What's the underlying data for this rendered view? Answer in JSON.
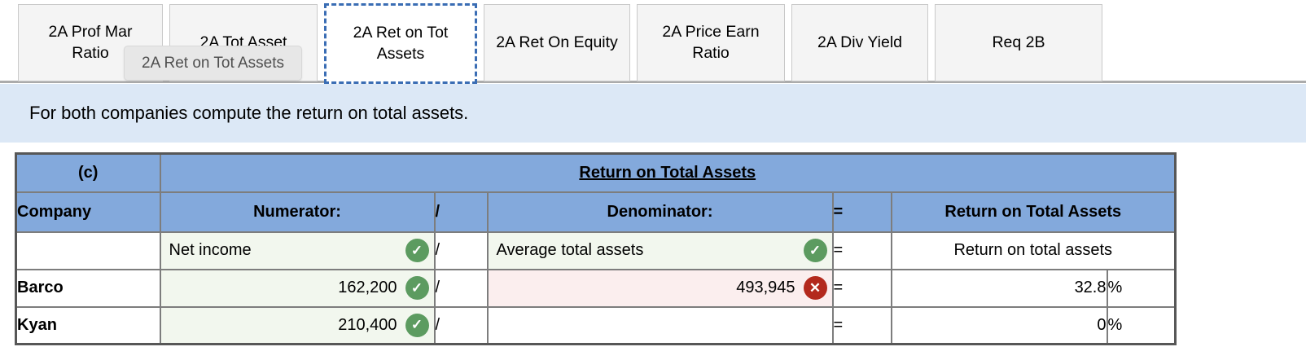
{
  "tabs": [
    {
      "label": "2A Prof Mar Ratio",
      "active": false
    },
    {
      "label": "2A Tot Asset",
      "active": false
    },
    {
      "label": "2A Ret on Tot Assets",
      "active": true
    },
    {
      "label": "2A Ret On Equity",
      "active": false
    },
    {
      "label": "2A Price Earn Ratio",
      "active": false
    },
    {
      "label": "2A Div Yield",
      "active": false
    },
    {
      "label": "Req 2B",
      "active": false
    }
  ],
  "tooltip": {
    "text": "2A Ret on Tot Assets"
  },
  "banner": {
    "text": "For both companies compute the return on total assets."
  },
  "icons": {
    "correct": "✓",
    "incorrect": "✕"
  },
  "symbols": {
    "slash": "/",
    "equals": "="
  },
  "table": {
    "corner_label": "(c)",
    "title": "Return on Total Assets",
    "headers": {
      "company": "Company",
      "numerator": "Numerator:",
      "slash": "/",
      "denominator": "Denominator:",
      "equals": "=",
      "result": "Return on Total Assets"
    },
    "formula_row": {
      "numerator": "Net income",
      "numerator_status": "correct",
      "denominator": "Average total assets",
      "denominator_status": "correct",
      "result": "Return on total assets"
    },
    "rows": [
      {
        "company": "Barco",
        "numerator": "162,200",
        "numerator_status": "correct",
        "denominator": "493,945",
        "denominator_status": "incorrect",
        "result": "32.8",
        "unit": "%"
      },
      {
        "company": "Kyan",
        "numerator": "210,400",
        "numerator_status": "correct",
        "denominator": "",
        "denominator_status": "none",
        "result": "0",
        "unit": "%"
      }
    ]
  },
  "colors": {
    "header_blue": "#83a9dc",
    "banner_blue": "#dce8f6",
    "correct_green": "#5c9b60",
    "incorrect_red": "#b3291d",
    "answer_green_bg": "#f2f7ee",
    "answer_pink_bg": "#fbeeee",
    "active_tab_border": "#3a6db4"
  }
}
